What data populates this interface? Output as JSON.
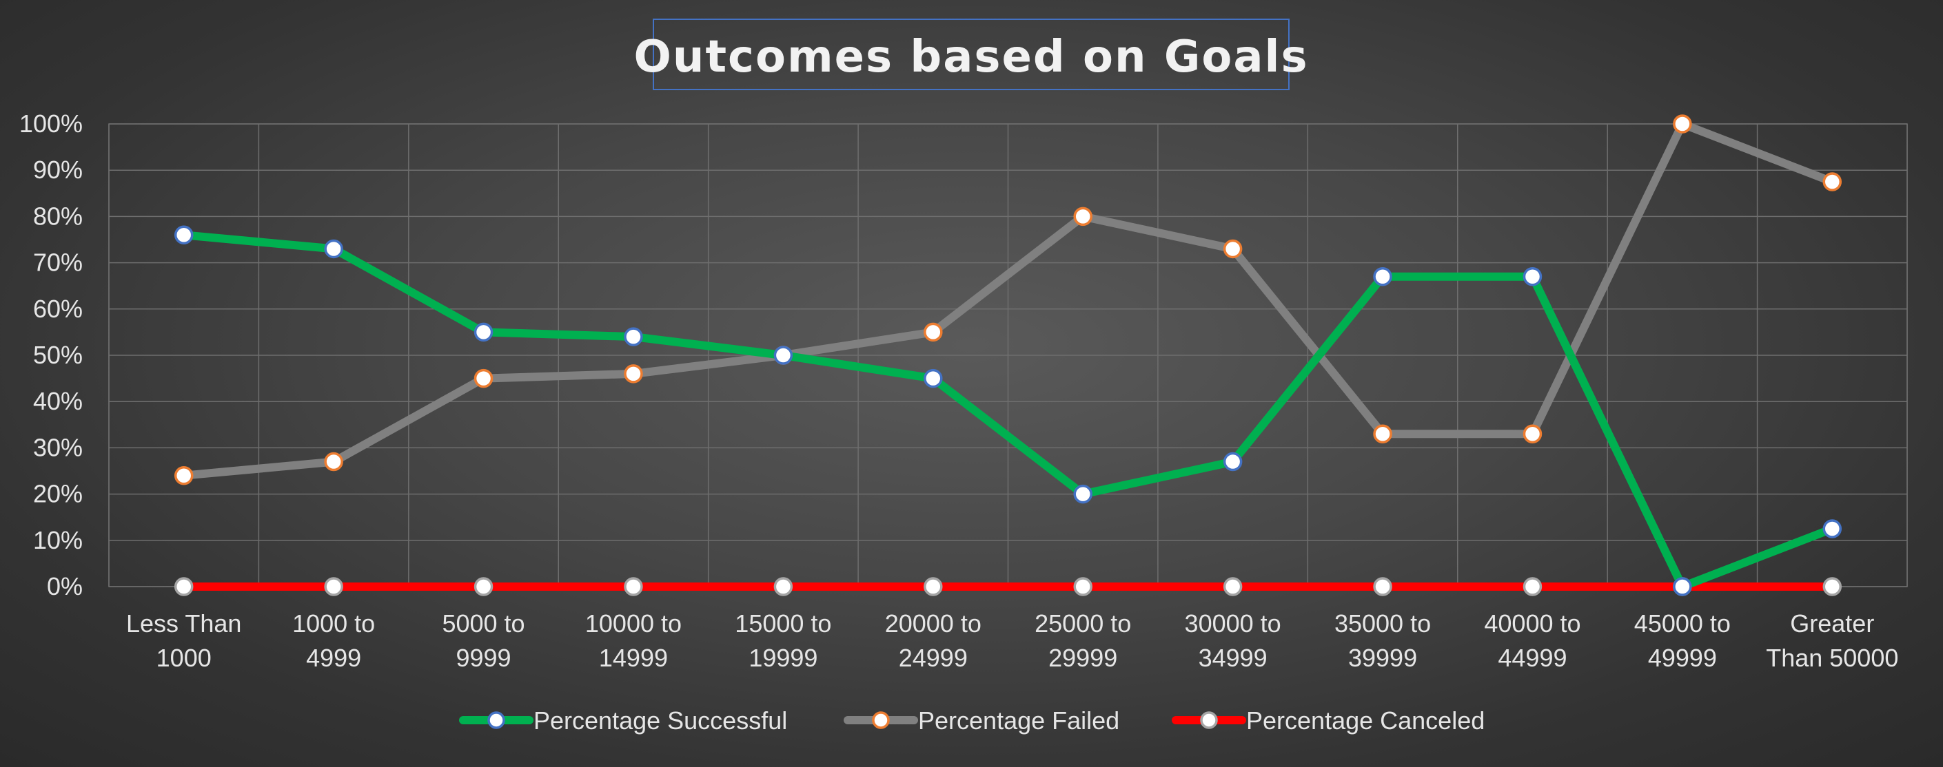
{
  "chart_data": {
    "type": "line",
    "title": "Outcomes based on Goals",
    "xlabel": "",
    "ylabel": "",
    "ylim": [
      0,
      1
    ],
    "y_ticks": [
      "0%",
      "10%",
      "20%",
      "30%",
      "40%",
      "50%",
      "60%",
      "70%",
      "80%",
      "90%",
      "100%"
    ],
    "categories": [
      "Less Than 1000",
      "1000 to 4999",
      "5000 to 9999",
      "10000 to 14999",
      "15000 to 19999",
      "20000 to 24999",
      "25000 to 29999",
      "30000 to 34999",
      "35000 to 39999",
      "40000 to 44999",
      "45000 to 49999",
      "Greater Than 50000"
    ],
    "category_lines": [
      [
        "Less Than",
        "1000"
      ],
      [
        "1000 to",
        "4999"
      ],
      [
        "5000 to",
        "9999"
      ],
      [
        "10000 to",
        "14999"
      ],
      [
        "15000 to",
        "19999"
      ],
      [
        "20000 to",
        "24999"
      ],
      [
        "25000 to",
        "29999"
      ],
      [
        "30000 to",
        "34999"
      ],
      [
        "35000 to",
        "39999"
      ],
      [
        "40000 to",
        "44999"
      ],
      [
        "45000 to",
        "49999"
      ],
      [
        "Greater",
        "Than 50000"
      ]
    ],
    "series": [
      {
        "name": "Percentage Successful",
        "color": "#00b050",
        "marker_edge": "#4472c4",
        "values": [
          0.76,
          0.73,
          0.55,
          0.54,
          0.5,
          0.45,
          0.2,
          0.27,
          0.67,
          0.67,
          0.0,
          0.125
        ]
      },
      {
        "name": "Percentage Failed",
        "color": "#808080",
        "marker_edge": "#ed7d31",
        "values": [
          0.24,
          0.27,
          0.45,
          0.46,
          0.5,
          0.55,
          0.8,
          0.73,
          0.33,
          0.33,
          1.0,
          0.875
        ]
      },
      {
        "name": "Percentage Canceled",
        "color": "#ff0000",
        "marker_edge": "#a5a5a5",
        "values": [
          0,
          0,
          0,
          0,
          0,
          0,
          0,
          0,
          0,
          0,
          0,
          0
        ]
      }
    ],
    "grid": true,
    "legend_position": "bottom"
  }
}
